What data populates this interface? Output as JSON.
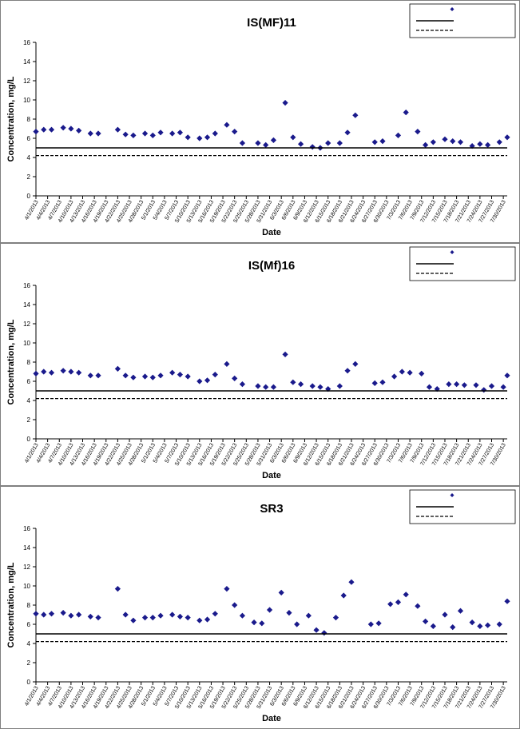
{
  "chart_data": [
    {
      "type": "scatter",
      "title": "IS(MF)11",
      "xlabel": "Date",
      "ylabel": "Concentration, mg/L",
      "ylim": [
        0,
        16
      ],
      "yticks": [
        0,
        2,
        4,
        6,
        8,
        10,
        12,
        14,
        16
      ],
      "xlim": [
        "4/1/2013",
        "7/31/2013"
      ],
      "xticks": [
        "4/1/2013",
        "4/4/2013",
        "4/7/2013",
        "4/10/2013",
        "4/13/2013",
        "4/16/2013",
        "4/19/2013",
        "4/22/2013",
        "4/25/2013",
        "4/28/2013",
        "5/1/2013",
        "5/4/2013",
        "5/7/2013",
        "5/10/2013",
        "5/13/2013",
        "5/16/2013",
        "5/19/2013",
        "5/22/2013",
        "5/25/2013",
        "5/28/2013",
        "5/31/2013",
        "6/3/2013",
        "6/6/2013",
        "6/9/2013",
        "6/12/2013",
        "6/15/2013",
        "6/18/2013",
        "6/21/2013",
        "6/24/2013",
        "6/27/2013",
        "6/30/2013",
        "7/3/2013",
        "7/6/2013",
        "7/9/2013",
        "7/12/2013",
        "7/15/2013",
        "7/18/2013",
        "7/21/2013",
        "7/24/2013",
        "7/27/2013",
        "7/30/2013"
      ],
      "grid": false,
      "legend_position": "top-right",
      "legend_marker_color": "#1a1a8c",
      "series": [
        {
          "style": "diamond-marker",
          "color": "#1a1a8c",
          "points": [
            {
              "x": "4/1/2013",
              "y": 6.7
            },
            {
              "x": "4/3/2013",
              "y": 6.9
            },
            {
              "x": "4/5/2013",
              "y": 6.9
            },
            {
              "x": "4/8/2013",
              "y": 7.1
            },
            {
              "x": "4/10/2013",
              "y": 7.0
            },
            {
              "x": "4/12/2013",
              "y": 6.8
            },
            {
              "x": "4/15/2013",
              "y": 6.5
            },
            {
              "x": "4/17/2013",
              "y": 6.5
            },
            {
              "x": "4/22/2013",
              "y": 6.9
            },
            {
              "x": "4/24/2013",
              "y": 6.4
            },
            {
              "x": "4/26/2013",
              "y": 6.3
            },
            {
              "x": "4/29/2013",
              "y": 6.5
            },
            {
              "x": "5/1/2013",
              "y": 6.3
            },
            {
              "x": "5/3/2013",
              "y": 6.6
            },
            {
              "x": "5/6/2013",
              "y": 6.5
            },
            {
              "x": "5/8/2013",
              "y": 6.6
            },
            {
              "x": "5/10/2013",
              "y": 6.1
            },
            {
              "x": "5/13/2013",
              "y": 6.0
            },
            {
              "x": "5/15/2013",
              "y": 6.1
            },
            {
              "x": "5/17/2013",
              "y": 6.5
            },
            {
              "x": "5/20/2013",
              "y": 7.4
            },
            {
              "x": "5/22/2013",
              "y": 6.7
            },
            {
              "x": "5/24/2013",
              "y": 5.5
            },
            {
              "x": "5/28/2013",
              "y": 5.5
            },
            {
              "x": "5/30/2013",
              "y": 5.3
            },
            {
              "x": "6/1/2013",
              "y": 5.8
            },
            {
              "x": "6/4/2013",
              "y": 9.7
            },
            {
              "x": "6/6/2013",
              "y": 6.1
            },
            {
              "x": "6/8/2013",
              "y": 5.4
            },
            {
              "x": "6/11/2013",
              "y": 5.1
            },
            {
              "x": "6/13/2013",
              "y": 5.0
            },
            {
              "x": "6/15/2013",
              "y": 5.5
            },
            {
              "x": "6/18/2013",
              "y": 5.5
            },
            {
              "x": "6/20/2013",
              "y": 6.6
            },
            {
              "x": "6/22/2013",
              "y": 8.4
            },
            {
              "x": "6/27/2013",
              "y": 5.6
            },
            {
              "x": "6/29/2013",
              "y": 5.7
            },
            {
              "x": "7/3/2013",
              "y": 6.3
            },
            {
              "x": "7/5/2013",
              "y": 8.7
            },
            {
              "x": "7/8/2013",
              "y": 6.7
            },
            {
              "x": "7/10/2013",
              "y": 5.3
            },
            {
              "x": "7/12/2013",
              "y": 5.6
            },
            {
              "x": "7/15/2013",
              "y": 5.9
            },
            {
              "x": "7/17/2013",
              "y": 5.7
            },
            {
              "x": "7/19/2013",
              "y": 5.6
            },
            {
              "x": "7/22/2013",
              "y": 5.2
            },
            {
              "x": "7/24/2013",
              "y": 5.4
            },
            {
              "x": "7/26/2013",
              "y": 5.3
            },
            {
              "x": "7/29/2013",
              "y": 5.6
            },
            {
              "x": "7/31/2013",
              "y": 6.1
            }
          ]
        },
        {
          "style": "solid-line",
          "color": "#000000",
          "y": 5.0
        },
        {
          "style": "dashed-line",
          "color": "#000000",
          "y": 4.2
        }
      ]
    },
    {
      "type": "scatter",
      "title": "IS(Mf)16",
      "xlabel": "Date",
      "ylabel": "Concentration, mg/L",
      "ylim": [
        0,
        16
      ],
      "yticks": [
        0,
        2,
        4,
        6,
        8,
        10,
        12,
        14,
        16
      ],
      "xlim": [
        "4/1/2013",
        "7/31/2013"
      ],
      "xticks": [
        "4/1/2013",
        "4/4/2013",
        "4/7/2013",
        "4/10/2013",
        "4/13/2013",
        "4/16/2013",
        "4/19/2013",
        "4/22/2013",
        "4/25/2013",
        "4/28/2013",
        "5/1/2013",
        "5/4/2013",
        "5/7/2013",
        "5/10/2013",
        "5/13/2013",
        "5/16/2013",
        "5/19/2013",
        "5/22/2013",
        "5/25/2013",
        "5/28/2013",
        "5/31/2013",
        "6/3/2013",
        "6/6/2013",
        "6/9/2013",
        "6/12/2013",
        "6/15/2013",
        "6/18/2013",
        "6/21/2013",
        "6/24/2013",
        "6/27/2013",
        "6/30/2013",
        "7/3/2013",
        "7/6/2013",
        "7/9/2013",
        "7/12/2013",
        "7/15/2013",
        "7/18/2013",
        "7/21/2013",
        "7/24/2013",
        "7/27/2013",
        "7/30/2013"
      ],
      "grid": false,
      "legend_position": "top-right",
      "legend_marker_color": "#1a1a8c",
      "series": [
        {
          "style": "diamond-marker",
          "color": "#1a1a8c",
          "points": [
            {
              "x": "4/1/2013",
              "y": 6.8
            },
            {
              "x": "4/3/2013",
              "y": 7.0
            },
            {
              "x": "4/5/2013",
              "y": 6.9
            },
            {
              "x": "4/8/2013",
              "y": 7.1
            },
            {
              "x": "4/10/2013",
              "y": 7.0
            },
            {
              "x": "4/12/2013",
              "y": 6.9
            },
            {
              "x": "4/15/2013",
              "y": 6.6
            },
            {
              "x": "4/17/2013",
              "y": 6.6
            },
            {
              "x": "4/22/2013",
              "y": 7.3
            },
            {
              "x": "4/24/2013",
              "y": 6.6
            },
            {
              "x": "4/26/2013",
              "y": 6.4
            },
            {
              "x": "4/29/2013",
              "y": 6.5
            },
            {
              "x": "5/1/2013",
              "y": 6.4
            },
            {
              "x": "5/3/2013",
              "y": 6.6
            },
            {
              "x": "5/6/2013",
              "y": 6.9
            },
            {
              "x": "5/8/2013",
              "y": 6.7
            },
            {
              "x": "5/10/2013",
              "y": 6.5
            },
            {
              "x": "5/13/2013",
              "y": 6.0
            },
            {
              "x": "5/15/2013",
              "y": 6.1
            },
            {
              "x": "5/17/2013",
              "y": 6.7
            },
            {
              "x": "5/20/2013",
              "y": 7.8
            },
            {
              "x": "5/22/2013",
              "y": 6.3
            },
            {
              "x": "5/24/2013",
              "y": 5.7
            },
            {
              "x": "5/28/2013",
              "y": 5.5
            },
            {
              "x": "5/30/2013",
              "y": 5.4
            },
            {
              "x": "6/1/2013",
              "y": 5.4
            },
            {
              "x": "6/4/2013",
              "y": 8.8
            },
            {
              "x": "6/6/2013",
              "y": 5.9
            },
            {
              "x": "6/8/2013",
              "y": 5.7
            },
            {
              "x": "6/11/2013",
              "y": 5.5
            },
            {
              "x": "6/13/2013",
              "y": 5.4
            },
            {
              "x": "6/15/2013",
              "y": 5.2
            },
            {
              "x": "6/18/2013",
              "y": 5.5
            },
            {
              "x": "6/20/2013",
              "y": 7.1
            },
            {
              "x": "6/22/2013",
              "y": 7.8
            },
            {
              "x": "6/27/2013",
              "y": 5.8
            },
            {
              "x": "6/29/2013",
              "y": 5.9
            },
            {
              "x": "7/2/2013",
              "y": 6.5
            },
            {
              "x": "7/4/2013",
              "y": 7.0
            },
            {
              "x": "7/6/2013",
              "y": 6.9
            },
            {
              "x": "7/9/2013",
              "y": 6.8
            },
            {
              "x": "7/11/2013",
              "y": 5.4
            },
            {
              "x": "7/13/2013",
              "y": 5.2
            },
            {
              "x": "7/16/2013",
              "y": 5.7
            },
            {
              "x": "7/18/2013",
              "y": 5.7
            },
            {
              "x": "7/20/2013",
              "y": 5.6
            },
            {
              "x": "7/23/2013",
              "y": 5.6
            },
            {
              "x": "7/25/2013",
              "y": 5.1
            },
            {
              "x": "7/27/2013",
              "y": 5.5
            },
            {
              "x": "7/30/2013",
              "y": 5.4
            },
            {
              "x": "7/31/2013",
              "y": 6.6
            }
          ]
        },
        {
          "style": "solid-line",
          "color": "#000000",
          "y": 5.0
        },
        {
          "style": "dashed-line",
          "color": "#000000",
          "y": 4.2
        }
      ]
    },
    {
      "type": "scatter",
      "title": "SR3",
      "xlabel": "Date",
      "ylabel": "Concentration, mg/L",
      "ylim": [
        0,
        16
      ],
      "yticks": [
        0,
        2,
        4,
        6,
        8,
        10,
        12,
        14,
        16
      ],
      "xlim": [
        "4/1/2013",
        "7/31/2013"
      ],
      "xticks": [
        "4/1/2013",
        "4/4/2013",
        "4/7/2013",
        "4/10/2013",
        "4/13/2013",
        "4/16/2013",
        "4/19/2013",
        "4/22/2013",
        "4/25/2013",
        "4/28/2013",
        "5/1/2013",
        "5/4/2013",
        "5/7/2013",
        "5/10/2013",
        "5/13/2013",
        "5/16/2013",
        "5/19/2013",
        "5/22/2013",
        "5/25/2013",
        "5/28/2013",
        "5/31/2013",
        "6/3/2013",
        "6/6/2013",
        "6/9/2013",
        "6/12/2013",
        "6/15/2013",
        "6/18/2013",
        "6/21/2013",
        "6/24/2013",
        "6/27/2013",
        "6/30/2013",
        "7/3/2013",
        "7/6/2013",
        "7/9/2013",
        "7/12/2013",
        "7/15/2013",
        "7/18/2013",
        "7/21/2013",
        "7/24/2013",
        "7/27/2013",
        "7/30/2013"
      ],
      "grid": false,
      "legend_position": "top-right",
      "legend_marker_color": "#1a1a8c",
      "series": [
        {
          "style": "diamond-marker",
          "color": "#1a1a8c",
          "points": [
            {
              "x": "4/1/2013",
              "y": 7.1
            },
            {
              "x": "4/3/2013",
              "y": 7.0
            },
            {
              "x": "4/5/2013",
              "y": 7.1
            },
            {
              "x": "4/8/2013",
              "y": 7.2
            },
            {
              "x": "4/10/2013",
              "y": 6.9
            },
            {
              "x": "4/12/2013",
              "y": 7.0
            },
            {
              "x": "4/15/2013",
              "y": 6.8
            },
            {
              "x": "4/17/2013",
              "y": 6.7
            },
            {
              "x": "4/22/2013",
              "y": 9.7
            },
            {
              "x": "4/24/2013",
              "y": 7.0
            },
            {
              "x": "4/26/2013",
              "y": 6.4
            },
            {
              "x": "4/29/2013",
              "y": 6.7
            },
            {
              "x": "5/1/2013",
              "y": 6.7
            },
            {
              "x": "5/3/2013",
              "y": 6.9
            },
            {
              "x": "5/6/2013",
              "y": 7.0
            },
            {
              "x": "5/8/2013",
              "y": 6.8
            },
            {
              "x": "5/10/2013",
              "y": 6.7
            },
            {
              "x": "5/13/2013",
              "y": 6.4
            },
            {
              "x": "5/15/2013",
              "y": 6.5
            },
            {
              "x": "5/17/2013",
              "y": 7.1
            },
            {
              "x": "5/20/2013",
              "y": 9.7
            },
            {
              "x": "5/22/2013",
              "y": 8.0
            },
            {
              "x": "5/24/2013",
              "y": 6.9
            },
            {
              "x": "5/27/2013",
              "y": 6.2
            },
            {
              "x": "5/29/2013",
              "y": 6.1
            },
            {
              "x": "5/31/2013",
              "y": 7.5
            },
            {
              "x": "6/3/2013",
              "y": 9.3
            },
            {
              "x": "6/5/2013",
              "y": 7.2
            },
            {
              "x": "6/7/2013",
              "y": 6.0
            },
            {
              "x": "6/10/2013",
              "y": 6.9
            },
            {
              "x": "6/12/2013",
              "y": 5.4
            },
            {
              "x": "6/14/2013",
              "y": 5.1
            },
            {
              "x": "6/17/2013",
              "y": 6.7
            },
            {
              "x": "6/19/2013",
              "y": 9.0
            },
            {
              "x": "6/21/2013",
              "y": 10.4
            },
            {
              "x": "6/26/2013",
              "y": 6.0
            },
            {
              "x": "6/28/2013",
              "y": 6.1
            },
            {
              "x": "7/1/2013",
              "y": 8.1
            },
            {
              "x": "7/3/2013",
              "y": 8.3
            },
            {
              "x": "7/5/2013",
              "y": 9.1
            },
            {
              "x": "7/8/2013",
              "y": 7.9
            },
            {
              "x": "7/10/2013",
              "y": 6.3
            },
            {
              "x": "7/12/2013",
              "y": 5.8
            },
            {
              "x": "7/15/2013",
              "y": 7.0
            },
            {
              "x": "7/17/2013",
              "y": 5.7
            },
            {
              "x": "7/19/2013",
              "y": 7.4
            },
            {
              "x": "7/22/2013",
              "y": 6.2
            },
            {
              "x": "7/24/2013",
              "y": 5.8
            },
            {
              "x": "7/26/2013",
              "y": 5.9
            },
            {
              "x": "7/29/2013",
              "y": 6.0
            },
            {
              "x": "7/31/2013",
              "y": 8.4
            }
          ]
        },
        {
          "style": "solid-line",
          "color": "#000000",
          "y": 5.0
        },
        {
          "style": "dashed-line",
          "color": "#000000",
          "y": 4.2
        }
      ]
    }
  ]
}
